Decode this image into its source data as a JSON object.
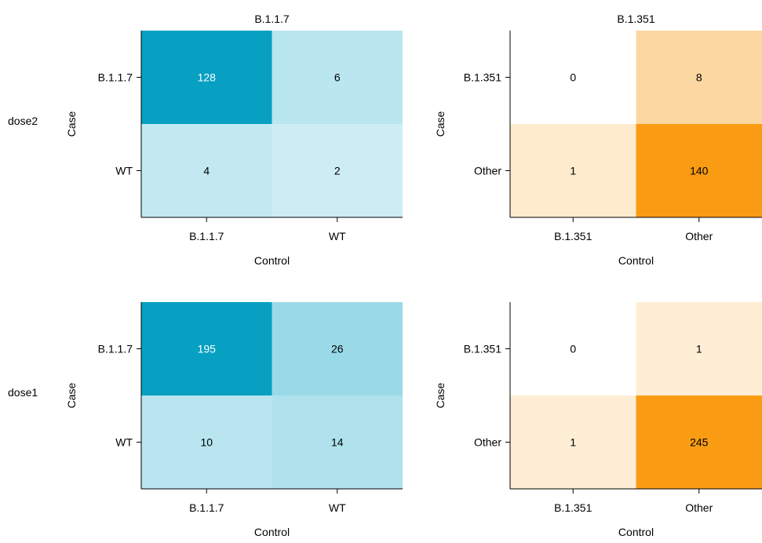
{
  "row_labels": [
    "dose2",
    "dose1"
  ],
  "colors": {
    "blue_scale": [
      "#e3f6fa",
      "#07a0c3"
    ],
    "orange_scale": [
      "#ffffff",
      "#fa9c13"
    ],
    "text_dark": "#000000",
    "text_light": "#ffffff",
    "axis": "#000000"
  },
  "chart_data": [
    {
      "type": "heatmap",
      "row": "dose2",
      "title": "B.1.1.7",
      "ylabel": "Case",
      "xlabel": "Control",
      "case_categories": [
        "B.1.1.7",
        "WT"
      ],
      "control_categories": [
        "B.1.1.7",
        "WT"
      ],
      "values": [
        [
          128,
          6
        ],
        [
          4,
          2
        ]
      ],
      "palette": "blue"
    },
    {
      "type": "heatmap",
      "row": "dose2",
      "title": "B.1.351",
      "ylabel": "Case",
      "xlabel": "Control",
      "case_categories": [
        "B.1.351",
        "Other"
      ],
      "control_categories": [
        "B.1.351",
        "Other"
      ],
      "values": [
        [
          0,
          8
        ],
        [
          1,
          140
        ]
      ],
      "palette": "orange"
    },
    {
      "type": "heatmap",
      "row": "dose1",
      "title": "",
      "ylabel": "Case",
      "xlabel": "Control",
      "case_categories": [
        "B.1.1.7",
        "WT"
      ],
      "control_categories": [
        "B.1.1.7",
        "WT"
      ],
      "values": [
        [
          195,
          26
        ],
        [
          10,
          14
        ]
      ],
      "palette": "blue"
    },
    {
      "type": "heatmap",
      "row": "dose1",
      "title": "",
      "ylabel": "Case",
      "xlabel": "Control",
      "case_categories": [
        "B.1.351",
        "Other"
      ],
      "control_categories": [
        "B.1.351",
        "Other"
      ],
      "values": [
        [
          0,
          1
        ],
        [
          1,
          245
        ]
      ],
      "palette": "orange"
    }
  ]
}
